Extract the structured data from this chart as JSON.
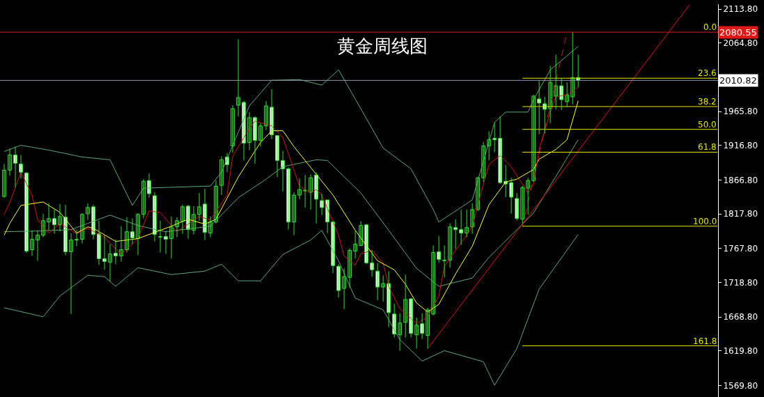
{
  "chart_data": {
    "type": "candlestick",
    "title": "黄金周线图",
    "categories": [
      null,
      null,
      null,
      null,
      null,
      null,
      null,
      null,
      null,
      null,
      null,
      null,
      null,
      null,
      null,
      null,
      null,
      null,
      null,
      null,
      null,
      null,
      null,
      null,
      null,
      null,
      null,
      null,
      null,
      null,
      null,
      null,
      null,
      null,
      null,
      null,
      null,
      null,
      null,
      null,
      null,
      null,
      null,
      null,
      null,
      null,
      null,
      null,
      null,
      null,
      null,
      null,
      null,
      null,
      null,
      null,
      null,
      null,
      null,
      null,
      null,
      null,
      null,
      null,
      null,
      null,
      null,
      null,
      null,
      null,
      null,
      null,
      null,
      null,
      null,
      null,
      null,
      null,
      null,
      null,
      null,
      null,
      null,
      null,
      null,
      null,
      null,
      null,
      null,
      null,
      null,
      null,
      null,
      null,
      null,
      null,
      null,
      null,
      null,
      null,
      null,
      null,
      null,
      null,
      null,
      null,
      null,
      null,
      null,
      null,
      null,
      null,
      null,
      null,
      null,
      null,
      null,
      null,
      null,
      null,
      null,
      null,
      null,
      null,
      null,
      null,
      null,
      null,
      null
    ],
    "ohlc": [
      [
        1843,
        1890,
        1841,
        1881
      ],
      [
        1881,
        1912,
        1873,
        1903
      ],
      [
        1903,
        1915,
        1856,
        1891
      ],
      [
        1890,
        1903,
        1869,
        1878
      ],
      [
        1877,
        1878,
        1761,
        1764
      ],
      [
        1766,
        1794,
        1757,
        1781
      ],
      [
        1780,
        1794,
        1750,
        1787
      ],
      [
        1787,
        1818,
        1784,
        1808
      ],
      [
        1806,
        1833,
        1794,
        1811
      ],
      [
        1811,
        1824,
        1789,
        1802
      ],
      [
        1802,
        1832,
        1792,
        1814
      ],
      [
        1813,
        1831,
        1758,
        1763
      ],
      [
        1763,
        1790,
        1673,
        1780
      ],
      [
        1780,
        1795,
        1771,
        1781
      ],
      [
        1781,
        1819,
        1775,
        1817
      ],
      [
        1818,
        1833,
        1809,
        1827
      ],
      [
        1828,
        1831,
        1781,
        1788
      ],
      [
        1789,
        1808,
        1744,
        1753
      ],
      [
        1753,
        1787,
        1737,
        1749
      ],
      [
        1748,
        1774,
        1720,
        1760
      ],
      [
        1761,
        1781,
        1745,
        1757
      ],
      [
        1757,
        1800,
        1749,
        1766
      ],
      [
        1766,
        1813,
        1762,
        1792
      ],
      [
        1792,
        1811,
        1774,
        1783
      ],
      [
        1782,
        1819,
        1758,
        1817
      ],
      [
        1817,
        1868,
        1811,
        1865
      ],
      [
        1866,
        1876,
        1841,
        1847
      ],
      [
        1844,
        1849,
        1778,
        1788
      ],
      [
        1784,
        1808,
        1762,
        1785
      ],
      [
        1785,
        1793,
        1760,
        1781
      ],
      [
        1782,
        1814,
        1753,
        1799
      ],
      [
        1799,
        1813,
        1784,
        1808
      ],
      [
        1807,
        1831,
        1789,
        1828
      ],
      [
        1829,
        1831,
        1782,
        1795
      ],
      [
        1794,
        1829,
        1788,
        1817
      ],
      [
        1817,
        1848,
        1808,
        1828
      ],
      [
        1832,
        1854,
        1780,
        1791
      ],
      [
        1790,
        1814,
        1784,
        1806
      ],
      [
        1806,
        1866,
        1804,
        1858
      ],
      [
        1859,
        1901,
        1845,
        1896
      ],
      [
        1900,
        1906,
        1878,
        1889
      ],
      [
        1916,
        1975,
        1906,
        1970
      ],
      [
        1975,
        2070,
        1959,
        1986
      ],
      [
        1979,
        1981,
        1895,
        1920
      ],
      [
        1921,
        1965,
        1910,
        1957
      ],
      [
        1957,
        1959,
        1890,
        1924
      ],
      [
        1924,
        1949,
        1915,
        1945
      ],
      [
        1945,
        1981,
        1939,
        1974
      ],
      [
        1972,
        1998,
        1926,
        1932
      ],
      [
        1931,
        1932,
        1871,
        1895
      ],
      [
        1895,
        1909,
        1850,
        1883
      ],
      [
        1883,
        1885,
        1795,
        1806
      ],
      [
        1806,
        1849,
        1787,
        1845
      ],
      [
        1845,
        1869,
        1839,
        1853
      ],
      [
        1851,
        1874,
        1827,
        1852
      ],
      [
        1849,
        1875,
        1824,
        1870
      ],
      [
        1874,
        1878,
        1804,
        1839
      ],
      [
        1837,
        1847,
        1816,
        1827
      ],
      [
        1838,
        1838,
        1790,
        1806
      ],
      [
        1806,
        1808,
        1732,
        1743
      ],
      [
        1742,
        1745,
        1697,
        1707
      ],
      [
        1710,
        1739,
        1680,
        1727
      ],
      [
        1726,
        1768,
        1711,
        1765
      ],
      [
        1764,
        1794,
        1753,
        1774
      ],
      [
        1772,
        1807,
        1771,
        1801
      ],
      [
        1802,
        1803,
        1745,
        1747
      ],
      [
        1747,
        1765,
        1727,
        1737
      ],
      [
        1735,
        1747,
        1693,
        1712
      ],
      [
        1712,
        1729,
        1691,
        1717
      ],
      [
        1717,
        1735,
        1654,
        1675
      ],
      [
        1673,
        1688,
        1639,
        1644
      ],
      [
        1643,
        1674,
        1620,
        1660
      ],
      [
        1661,
        1730,
        1639,
        1694
      ],
      [
        1695,
        1696,
        1639,
        1645
      ],
      [
        1643,
        1668,
        1623,
        1657
      ],
      [
        1659,
        1674,
        1637,
        1645
      ],
      [
        1642,
        1682,
        1623,
        1679
      ],
      [
        1673,
        1772,
        1671,
        1762
      ],
      [
        1763,
        1786,
        1747,
        1752
      ],
      [
        1750,
        1772,
        1726,
        1751
      ],
      [
        1751,
        1804,
        1740,
        1799
      ],
      [
        1798,
        1810,
        1767,
        1795
      ],
      [
        1795,
        1824,
        1773,
        1790
      ],
      [
        1790,
        1824,
        1784,
        1798
      ],
      [
        1799,
        1833,
        1789,
        1824
      ],
      [
        1824,
        1871,
        1822,
        1870
      ],
      [
        1870,
        1922,
        1864,
        1916
      ],
      [
        1916,
        1937,
        1895,
        1925
      ],
      [
        1927,
        1949,
        1907,
        1925
      ],
      [
        1927,
        1959,
        1861,
        1863
      ],
      [
        1865,
        1889,
        1842,
        1861
      ],
      [
        1863,
        1870,
        1818,
        1842
      ],
      [
        1840,
        1848,
        1808,
        1811
      ],
      [
        1810,
        1858,
        1803,
        1856
      ],
      [
        1855,
        1870,
        1817,
        1866
      ],
      [
        1866,
        1990,
        1864,
        1988
      ],
      [
        1984,
        2010,
        1933,
        1978
      ],
      [
        1977,
        1987,
        1934,
        1969
      ],
      [
        1970,
        2032,
        1949,
        2008
      ],
      [
        1988,
        2048,
        1969,
        2003
      ],
      [
        2003,
        2014,
        1968,
        1983
      ],
      [
        1980,
        2008,
        1972,
        1990
      ],
      [
        1987,
        2080.55,
        1976,
        2015
      ],
      [
        2015,
        2048,
        2001,
        2010.82
      ],
      null,
      null,
      null,
      null,
      null,
      null,
      null,
      null,
      null,
      null,
      null,
      null,
      null,
      null,
      null,
      null,
      null,
      null,
      null,
      null,
      null,
      null,
      null,
      null,
      null
    ],
    "series": [
      {
        "type": "line",
        "color": "#5fa77a",
        "values": [
          1908,
          null,
          null,
          1917,
          null,
          null,
          null,
          null,
          1910,
          null,
          null,
          null,
          null,
          null,
          1900,
          null,
          null,
          null,
          null,
          1896,
          null,
          null,
          null,
          1830,
          null,
          1855,
          null,
          null,
          null,
          null,
          null,
          null,
          null,
          null,
          null,
          null,
          null,
          1858,
          null,
          1878,
          null,
          null,
          null,
          null,
          1974,
          null,
          null,
          null,
          2011,
          null,
          null,
          null,
          null,
          2012,
          null,
          null,
          null,
          2004,
          null,
          null,
          2026,
          null,
          null,
          1984,
          null,
          null,
          null,
          null,
          1913,
          null,
          null,
          null,
          null,
          1883,
          null,
          null,
          null,
          1824,
          1806,
          null,
          null,
          null,
          null,
          null,
          1838,
          null,
          null,
          null,
          1950,
          null,
          1965,
          null,
          null,
          null,
          1965,
          1983,
          null,
          null,
          2026,
          null,
          null,
          null,
          null,
          2060,
          null,
          null,
          null,
          null,
          null,
          null,
          null,
          null,
          null,
          null,
          null,
          null,
          null,
          null,
          null,
          null,
          null,
          null,
          null,
          null,
          null,
          null,
          null,
          null,
          null
        ]
      },
      {
        "type": "line",
        "color": "#5fa77a",
        "values": [
          1792,
          null,
          null,
          null,
          null,
          null,
          1793,
          null,
          null,
          null,
          null,
          null,
          1795,
          null,
          null,
          null,
          null,
          null,
          null,
          1816,
          null,
          null,
          null,
          null,
          1801,
          null,
          null,
          null,
          null,
          1792,
          null,
          null,
          null,
          null,
          1797,
          null,
          null,
          1800,
          null,
          null,
          null,
          null,
          1841,
          null,
          null,
          null,
          null,
          1868,
          null,
          null,
          1886,
          null,
          null,
          null,
          null,
          null,
          1896,
          null,
          1895,
          null,
          null,
          null,
          null,
          null,
          1848,
          null,
          null,
          null,
          null,
          1794,
          null,
          null,
          null,
          null,
          1739,
          null,
          null,
          null,
          1713,
          null,
          null,
          null,
          null,
          null,
          1725,
          null,
          null,
          1755,
          null,
          null,
          null,
          null,
          null,
          null,
          null,
          1819,
          null,
          null,
          null,
          null,
          null,
          null,
          null,
          1925,
          null,
          null,
          null,
          null,
          null,
          null,
          null,
          null,
          null,
          null,
          null,
          null,
          null,
          null,
          null,
          null,
          null,
          null,
          null,
          null,
          null,
          null,
          null,
          null,
          null
        ]
      },
      {
        "type": "line",
        "color": "#5fa77a",
        "values": [
          1682,
          null,
          null,
          null,
          null,
          null,
          null,
          1669,
          null,
          null,
          1699,
          null,
          null,
          null,
          null,
          1729,
          null,
          null,
          1727,
          null,
          1713,
          null,
          null,
          null,
          1740,
          null,
          null,
          null,
          null,
          null,
          1730,
          null,
          null,
          null,
          null,
          null,
          1735,
          null,
          null,
          1745,
          null,
          null,
          1721,
          null,
          null,
          null,
          1721,
          null,
          null,
          null,
          1759,
          null,
          null,
          null,
          null,
          1780,
          null,
          1794,
          null,
          null,
          1750,
          null,
          null,
          1696,
          null,
          null,
          null,
          null,
          1679,
          null,
          null,
          1636,
          null,
          null,
          null,
          1605,
          null,
          null,
          null,
          1620,
          null,
          null,
          null,
          null,
          null,
          null,
          1604,
          null,
          1570,
          null,
          null,
          null,
          1623,
          null,
          null,
          null,
          1709,
          null,
          null,
          null,
          null,
          null,
          null,
          1788,
          null,
          null,
          null,
          null,
          null,
          null,
          null,
          null,
          null,
          null,
          null,
          null,
          null,
          null,
          null,
          null,
          null,
          null,
          null,
          null,
          null,
          null,
          null,
          null,
          null
        ]
      },
      {
        "type": "line",
        "color": "#d01818",
        "values": [
          1817,
          1834,
          null,
          1878,
          null,
          1845,
          1810,
          null,
          1790,
          null,
          1804,
          null,
          null,
          1789,
          null,
          1797,
          null,
          null,
          1784,
          null,
          null,
          1759,
          null,
          null,
          1782,
          null,
          1822,
          null,
          1820,
          null,
          null,
          1792,
          null,
          null,
          null,
          1814,
          null,
          1809,
          null,
          null,
          1845,
          1901,
          null,
          null,
          1941,
          1952,
          null,
          null,
          1945,
          null,
          1928,
          null,
          1881,
          1858,
          null,
          1848,
          1853,
          1845,
          null,
          null,
          1787,
          1757,
          null,
          1744,
          1760,
          null,
          1765,
          null,
          1747,
          1713,
          null,
          1681,
          null,
          null,
          1659,
          null,
          1669,
          null,
          1699,
          1742,
          null,
          null,
          null,
          null,
          1799,
          null,
          1861,
          1889,
          null,
          1902,
          null,
          1886,
          null,
          null,
          1848,
          1861,
          1911,
          null,
          1965,
          1987,
          null,
          1990,
          null,
          2001,
          null,
          null,
          null,
          null,
          null,
          null,
          null,
          null,
          null,
          null,
          null,
          null,
          null,
          null,
          null,
          null,
          null,
          null,
          null,
          null,
          null,
          null,
          null,
          null,
          null
        ]
      },
      {
        "type": "line",
        "color": "#ffff40",
        "values": [
          1787,
          1804,
          null,
          1830,
          null,
          null,
          null,
          1835,
          null,
          null,
          1820,
          null,
          null,
          1790,
          null,
          1799,
          1797,
          null,
          null,
          null,
          1778,
          null,
          null,
          null,
          1782,
          null,
          null,
          null,
          null,
          null,
          1800,
          null,
          null,
          1810,
          null,
          null,
          1803,
          null,
          1810,
          null,
          null,
          null,
          1871,
          null,
          null,
          null,
          1921,
          null,
          1938,
          null,
          1938,
          null,
          1915,
          null,
          1895,
          null,
          1875,
          null,
          null,
          1845,
          null,
          null,
          null,
          1794,
          null,
          null,
          null,
          1750,
          null,
          null,
          1737,
          null,
          1716,
          null,
          1689,
          null,
          1676,
          null,
          1687,
          null,
          null,
          1731,
          null,
          null,
          1771,
          null,
          null,
          1831,
          null,
          null,
          1864,
          null,
          1868,
          null,
          null,
          1882,
          1897,
          null,
          null,
          1911,
          null,
          1925,
          null,
          1981,
          null,
          null,
          null,
          null,
          null,
          null,
          null,
          null,
          null,
          null,
          null,
          null,
          null,
          null,
          null,
          null,
          null,
          null,
          null,
          null,
          null,
          null,
          null,
          null,
          null
        ]
      },
      {
        "type": "line",
        "color": "#e01818",
        "values": [
          null,
          null,
          null,
          null,
          null,
          null,
          null,
          null,
          null,
          null,
          null,
          null,
          null,
          null,
          null,
          null,
          null,
          null,
          null,
          null,
          null,
          null,
          null,
          null,
          null,
          null,
          null,
          null,
          null,
          null,
          null,
          null,
          null,
          null,
          null,
          null,
          null,
          null,
          null,
          null,
          null,
          null,
          null,
          null,
          null,
          null,
          null,
          null,
          null,
          null,
          null,
          null,
          null,
          null,
          null,
          null,
          null,
          null,
          null,
          null,
          null,
          null,
          null,
          null,
          null,
          null,
          null,
          null,
          null,
          null,
          null,
          null,
          null,
          null,
          null,
          null,
          1623,
          null,
          null,
          null,
          null,
          null,
          null,
          null,
          null,
          null,
          null,
          null,
          null,
          null,
          null,
          null,
          null,
          null,
          null,
          null,
          null,
          null,
          null,
          null,
          null,
          null,
          null,
          null,
          null,
          null,
          null,
          null,
          null,
          null,
          null,
          null,
          null,
          null,
          null,
          null,
          null,
          null,
          null,
          null,
          null,
          null,
          null,
          2120,
          null,
          null,
          null,
          null,
          null
        ]
      },
      {
        "type": "line",
        "color": "#e01818",
        "line_style": "dashed",
        "values": [
          null,
          null,
          null,
          null,
          null,
          null,
          null,
          null,
          null,
          null,
          null,
          null,
          null,
          null,
          null,
          null,
          null,
          null,
          null,
          null,
          null,
          null,
          null,
          null,
          null,
          null,
          null,
          null,
          null,
          null,
          null,
          null,
          null,
          null,
          null,
          null,
          null,
          null,
          null,
          null,
          null,
          null,
          null,
          null,
          null,
          null,
          null,
          null,
          null,
          null,
          null,
          null,
          null,
          null,
          null,
          null,
          null,
          null,
          null,
          null,
          null,
          null,
          null,
          null,
          null,
          null,
          null,
          null,
          null,
          null,
          null,
          null,
          null,
          null,
          null,
          null,
          null,
          null,
          null,
          null,
          null,
          null,
          null,
          null,
          null,
          null,
          null,
          null,
          null,
          null,
          null,
          null,
          null,
          1799,
          null,
          null,
          null,
          null,
          null,
          null,
          null,
          2080,
          null,
          null,
          null,
          null,
          null,
          null,
          null,
          null,
          null,
          null,
          null,
          null,
          null,
          null,
          null,
          null,
          null,
          null,
          null,
          null,
          null,
          null,
          null,
          null,
          null,
          null,
          null
        ]
      },
      {
        "type": "line",
        "color": "#e6e600",
        "values": [
          null,
          null,
          null,
          null,
          null,
          null,
          null,
          null,
          null,
          null,
          null,
          null,
          null,
          null,
          null,
          null,
          null,
          null,
          null,
          null,
          null,
          null,
          null,
          null,
          null,
          null,
          null,
          null,
          null,
          null,
          null,
          null,
          null,
          null,
          null,
          null,
          null,
          null,
          null,
          null,
          null,
          null,
          null,
          null,
          null,
          null,
          null,
          null,
          null,
          null,
          null,
          null,
          null,
          null,
          null,
          null,
          null,
          null,
          null,
          null,
          null,
          null,
          null,
          null,
          null,
          null,
          null,
          null,
          null,
          null,
          null,
          null,
          null,
          null,
          null,
          null,
          null,
          null,
          null,
          null,
          null,
          null,
          null,
          null,
          null,
          null,
          null,
          null,
          null,
          null,
          null,
          null,
          null,
          2014,
          null,
          null,
          null,
          null,
          null,
          null,
          null,
          null,
          null,
          null,
          null,
          null,
          null,
          null,
          null,
          null,
          null,
          null,
          null,
          null,
          null,
          null,
          null,
          null,
          null,
          null,
          null,
          null,
          null,
          null,
          null,
          null,
          null,
          null,
          2014
        ]
      },
      {
        "type": "line",
        "color": "#e6e600",
        "values": [
          null,
          null,
          null,
          null,
          null,
          null,
          null,
          null,
          null,
          null,
          null,
          null,
          null,
          null,
          null,
          null,
          null,
          null,
          null,
          null,
          null,
          null,
          null,
          null,
          null,
          null,
          null,
          null,
          null,
          null,
          null,
          null,
          null,
          null,
          null,
          null,
          null,
          null,
          null,
          null,
          null,
          null,
          null,
          null,
          null,
          null,
          null,
          null,
          null,
          null,
          null,
          null,
          null,
          null,
          null,
          null,
          null,
          null,
          null,
          null,
          null,
          null,
          null,
          null,
          null,
          null,
          null,
          null,
          null,
          null,
          null,
          null,
          null,
          null,
          null,
          null,
          null,
          null,
          null,
          null,
          null,
          null,
          null,
          null,
          null,
          null,
          null,
          null,
          null,
          null,
          null,
          null,
          null,
          1973,
          null,
          null,
          null,
          null,
          null,
          null,
          null,
          null,
          null,
          null,
          null,
          null,
          null,
          null,
          null,
          null,
          null,
          null,
          null,
          null,
          null,
          null,
          null,
          null,
          null,
          null,
          null,
          null,
          null,
          null,
          null,
          null,
          null,
          null,
          1973
        ]
      },
      {
        "type": "line",
        "color": "#e6e600",
        "values": [
          null,
          null,
          null,
          null,
          null,
          null,
          null,
          null,
          null,
          null,
          null,
          null,
          null,
          null,
          null,
          null,
          null,
          null,
          null,
          null,
          null,
          null,
          null,
          null,
          null,
          null,
          null,
          null,
          null,
          null,
          null,
          null,
          null,
          null,
          null,
          null,
          null,
          null,
          null,
          null,
          null,
          null,
          null,
          null,
          null,
          null,
          null,
          null,
          null,
          null,
          null,
          null,
          null,
          null,
          null,
          null,
          null,
          null,
          null,
          null,
          null,
          null,
          null,
          null,
          null,
          null,
          null,
          null,
          null,
          null,
          null,
          null,
          null,
          null,
          null,
          null,
          null,
          null,
          null,
          null,
          null,
          null,
          null,
          null,
          null,
          null,
          null,
          null,
          null,
          null,
          null,
          null,
          null,
          1940,
          null,
          null,
          null,
          null,
          null,
          null,
          null,
          null,
          null,
          null,
          null,
          null,
          null,
          null,
          null,
          null,
          null,
          null,
          null,
          null,
          null,
          null,
          null,
          null,
          null,
          null,
          null,
          null,
          null,
          null,
          null,
          null,
          null,
          null,
          1940
        ]
      },
      {
        "type": "line",
        "color": "#e6e600",
        "values": [
          null,
          null,
          null,
          null,
          null,
          null,
          null,
          null,
          null,
          null,
          null,
          null,
          null,
          null,
          null,
          null,
          null,
          null,
          null,
          null,
          null,
          null,
          null,
          null,
          null,
          null,
          null,
          null,
          null,
          null,
          null,
          null,
          null,
          null,
          null,
          null,
          null,
          null,
          null,
          null,
          null,
          null,
          null,
          null,
          null,
          null,
          null,
          null,
          null,
          null,
          null,
          null,
          null,
          null,
          null,
          null,
          null,
          null,
          null,
          null,
          null,
          null,
          null,
          null,
          null,
          null,
          null,
          null,
          null,
          null,
          null,
          null,
          null,
          null,
          null,
          null,
          null,
          null,
          null,
          null,
          null,
          null,
          null,
          null,
          null,
          null,
          null,
          null,
          null,
          null,
          null,
          null,
          null,
          1907,
          null,
          null,
          null,
          null,
          null,
          null,
          null,
          null,
          null,
          null,
          null,
          null,
          null,
          null,
          null,
          null,
          null,
          null,
          null,
          null,
          null,
          null,
          null,
          null,
          null,
          null,
          null,
          null,
          null,
          null,
          null,
          null,
          null,
          null,
          1907
        ]
      },
      {
        "type": "line",
        "color": "#e6e600",
        "values": [
          null,
          null,
          null,
          null,
          null,
          null,
          null,
          null,
          null,
          null,
          null,
          null,
          null,
          null,
          null,
          null,
          null,
          null,
          null,
          null,
          null,
          null,
          null,
          null,
          null,
          null,
          null,
          null,
          null,
          null,
          null,
          null,
          null,
          null,
          null,
          null,
          null,
          null,
          null,
          null,
          null,
          null,
          null,
          null,
          null,
          null,
          null,
          null,
          null,
          null,
          null,
          null,
          null,
          null,
          null,
          null,
          null,
          null,
          null,
          null,
          null,
          null,
          null,
          null,
          null,
          null,
          null,
          null,
          null,
          null,
          null,
          null,
          null,
          null,
          null,
          null,
          null,
          null,
          null,
          null,
          null,
          null,
          null,
          null,
          null,
          null,
          null,
          null,
          null,
          null,
          null,
          null,
          null,
          1800,
          null,
          null,
          null,
          null,
          null,
          null,
          null,
          null,
          null,
          null,
          null,
          null,
          null,
          null,
          null,
          null,
          null,
          null,
          null,
          null,
          null,
          null,
          null,
          null,
          null,
          null,
          null,
          null,
          null,
          null,
          null,
          null,
          null,
          null,
          1800
        ]
      },
      {
        "type": "line",
        "color": "#e6e600",
        "values": [
          null,
          null,
          null,
          null,
          null,
          null,
          null,
          null,
          null,
          null,
          null,
          null,
          null,
          null,
          null,
          null,
          null,
          null,
          null,
          null,
          null,
          null,
          null,
          null,
          null,
          null,
          null,
          null,
          null,
          null,
          null,
          null,
          null,
          null,
          null,
          null,
          null,
          null,
          null,
          null,
          null,
          null,
          null,
          null,
          null,
          null,
          null,
          null,
          null,
          null,
          null,
          null,
          null,
          null,
          null,
          null,
          null,
          null,
          null,
          null,
          null,
          null,
          null,
          null,
          null,
          null,
          null,
          null,
          null,
          null,
          null,
          null,
          null,
          null,
          null,
          null,
          null,
          null,
          null,
          null,
          null,
          null,
          null,
          null,
          null,
          null,
          null,
          null,
          null,
          null,
          null,
          null,
          null,
          1627,
          null,
          null,
          null,
          null,
          null,
          null,
          null,
          null,
          null,
          null,
          null,
          null,
          null,
          null,
          null,
          null,
          null,
          null,
          null,
          null,
          null,
          null,
          null,
          null,
          null,
          null,
          null,
          null,
          null,
          null,
          null,
          null,
          null,
          null,
          1627
        ]
      }
    ],
    "ref_lines": [
      {
        "axis": "y",
        "value": 2080.55,
        "label": "2080.55",
        "color": "#e01818"
      },
      {
        "axis": "y",
        "value": 2010.82,
        "label": "2010.82",
        "color": "#8a98a8"
      }
    ],
    "annotations": [
      {
        "text": "0.0",
        "y": 2080.55
      },
      {
        "text": "23.6",
        "y": 2014
      },
      {
        "text": "38.2",
        "y": 1973
      },
      {
        "text": "50.0",
        "y": 1940
      },
      {
        "text": "61.8",
        "y": 1907
      },
      {
        "text": "100.0",
        "y": 1800
      },
      {
        "text": "161.8",
        "y": 1627
      }
    ],
    "ylim": [
      1553,
      2121
    ],
    "yticks": [
      {
        "value": 2113.8,
        "label": "2113.80"
      },
      {
        "value": 2064.8,
        "label": "2064.80"
      },
      {
        "value": 1965.8,
        "label": "1965.80"
      },
      {
        "value": 1916.8,
        "label": "1916.80"
      },
      {
        "value": 1866.8,
        "label": "1866.80"
      },
      {
        "value": 1817.8,
        "label": "1817.80"
      },
      {
        "value": 1767.8,
        "label": "1767.80"
      },
      {
        "value": 1718.8,
        "label": "1718.80"
      },
      {
        "value": 1668.8,
        "label": "1668.80"
      },
      {
        "value": 1619.8,
        "label": "1619.80"
      },
      {
        "value": 1569.8,
        "label": "1569.80"
      }
    ],
    "tick_labels": "y",
    "grid": false
  }
}
